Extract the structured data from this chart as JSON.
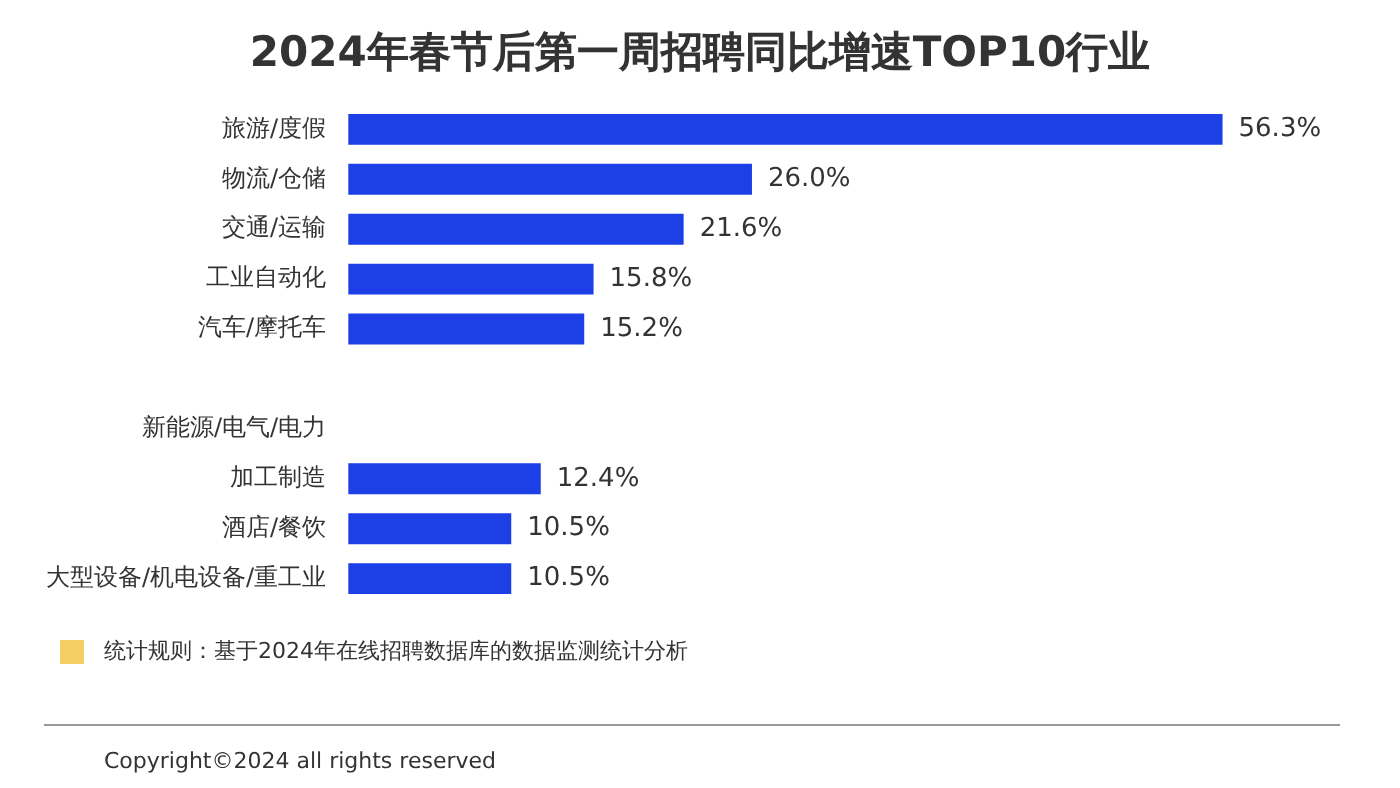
{
  "chart_data": {
    "type": "bar",
    "orientation": "horizontal",
    "title": "2024年春节后第一周招聘同比增速TOP10行业",
    "categories": [
      "旅游/度假",
      "物流/仓储",
      "交通/运输",
      "工业自动化",
      "汽车/摩托车",
      null,
      "新能源/电气/电力",
      "加工制造",
      "酒店/餐饮",
      "大型设备/机电设备/重工业"
    ],
    "values": [
      56.3,
      26.0,
      21.6,
      15.8,
      15.2,
      null,
      null,
      12.4,
      10.5,
      10.5
    ],
    "value_labels": [
      "56.3%",
      "26.0%",
      "21.6%",
      "15.8%",
      "15.2%",
      null,
      null,
      "12.4%",
      "10.5%",
      "10.5%"
    ],
    "color": "#1c3fe6",
    "annotations": [
      "统计规则：基于2024年在线招聘数据库的数据监测统计分析",
      "Copyright©2024 all rights reserved"
    ]
  }
}
